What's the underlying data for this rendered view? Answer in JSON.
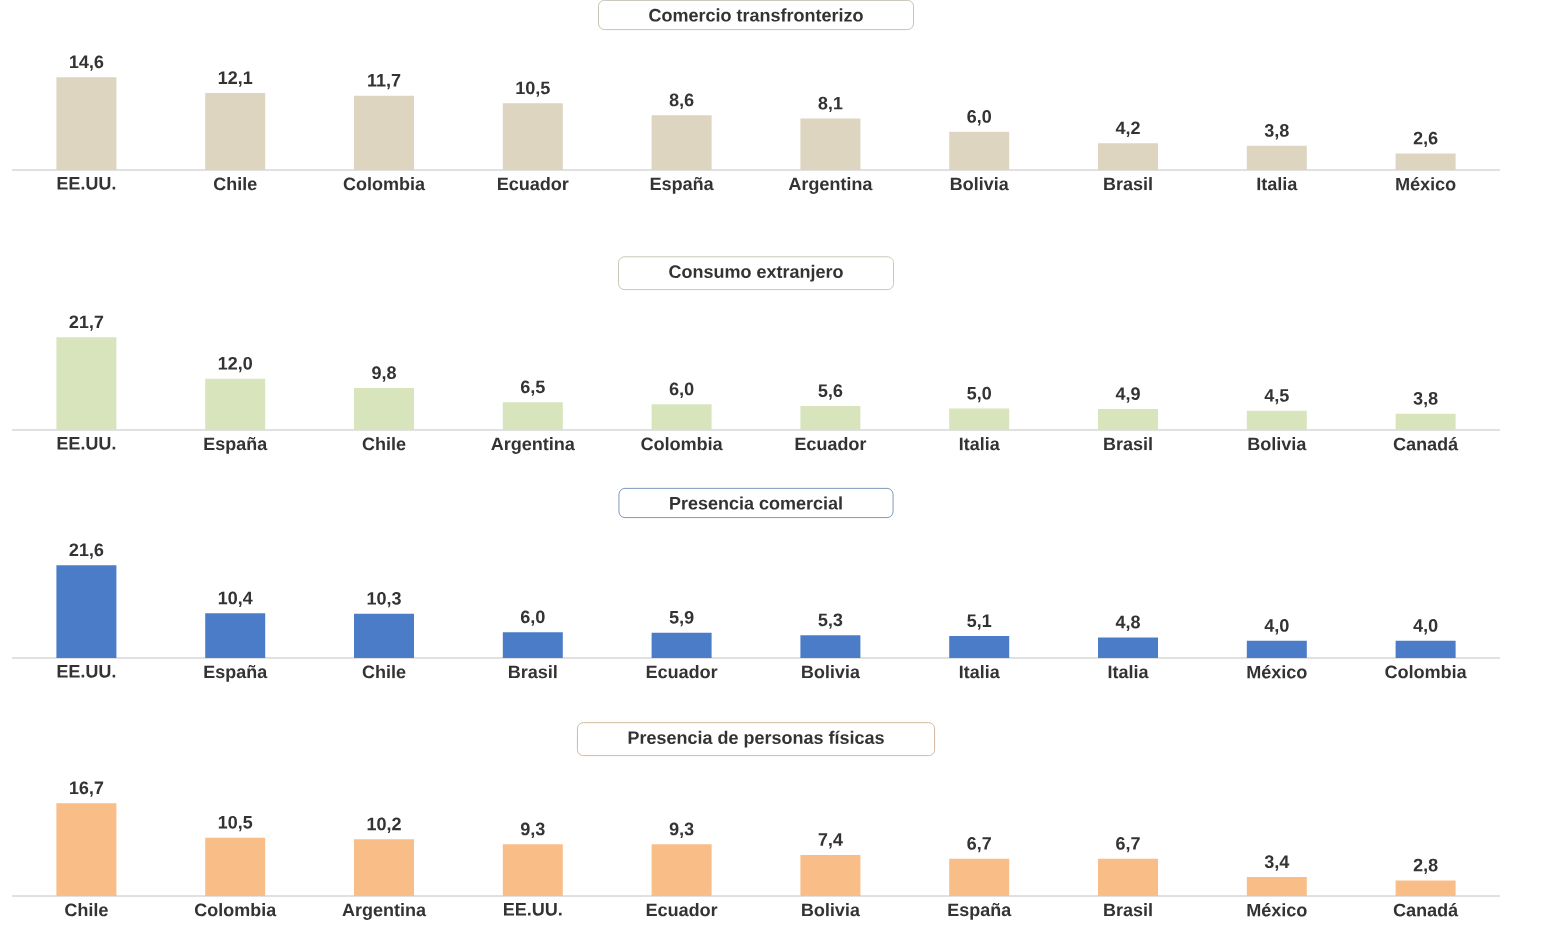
{
  "chart_data": [
    {
      "type": "bar",
      "title": "Comercio transfronterizo",
      "color": "#ddd5c0",
      "categories": [
        "EE.UU.",
        "Chile",
        "Colombia",
        "Ecuador",
        "España",
        "Argentina",
        "Bolivia",
        "Brasil",
        "Italia",
        "México"
      ],
      "values": [
        14.6,
        12.1,
        11.7,
        10.5,
        8.6,
        8.1,
        6.0,
        4.2,
        3.8,
        2.6
      ],
      "value_labels": [
        "14,6",
        "12,1",
        "11,7",
        "10,5",
        "8,6",
        "8,1",
        "6,0",
        "4,2",
        "3,8",
        "2,6"
      ]
    },
    {
      "type": "bar",
      "title": "Consumo extranjero",
      "color": "#d7e4bc",
      "categories": [
        "EE.UU.",
        "España",
        "Chile",
        "Argentina",
        "Colombia",
        "Ecuador",
        "Italia",
        "Brasil",
        "Bolivia",
        "Canadá"
      ],
      "values": [
        21.7,
        12.0,
        9.8,
        6.5,
        6.0,
        5.6,
        5.0,
        4.9,
        4.5,
        3.8
      ],
      "value_labels": [
        "21,7",
        "12,0",
        "9,8",
        "6,5",
        "6,0",
        "5,6",
        "5,0",
        "4,9",
        "4,5",
        "3,8"
      ]
    },
    {
      "type": "bar",
      "title": "Presencia comercial",
      "color": "#4a7cc8",
      "categories": [
        "EE.UU.",
        "España",
        "Chile",
        "Brasil",
        "Ecuador",
        "Bolivia",
        "Italia",
        "Italia",
        "México",
        "Colombia"
      ],
      "values": [
        21.6,
        10.4,
        10.3,
        6.0,
        5.9,
        5.3,
        5.1,
        4.8,
        4.0,
        4.0
      ],
      "value_labels": [
        "21,6",
        "10,4",
        "10,3",
        "6,0",
        "5,9",
        "5,3",
        "5,1",
        "4,8",
        "4,0",
        "4,0"
      ]
    },
    {
      "type": "bar",
      "title": "Presencia de personas físicas",
      "color": "#f9bd87",
      "categories": [
        "Chile",
        "Colombia",
        "Argentina",
        "EE.UU.",
        "Ecuador",
        "Bolivia",
        "España",
        "Brasil",
        "México",
        "Canadá"
      ],
      "values": [
        16.7,
        10.5,
        10.2,
        9.3,
        9.3,
        7.4,
        6.7,
        6.7,
        3.4,
        2.8
      ],
      "value_labels": [
        "16,7",
        "10,5",
        "10,2",
        "9,3",
        "9,3",
        "7,4",
        "6,7",
        "6,7",
        "3,4",
        "2,8"
      ]
    }
  ]
}
